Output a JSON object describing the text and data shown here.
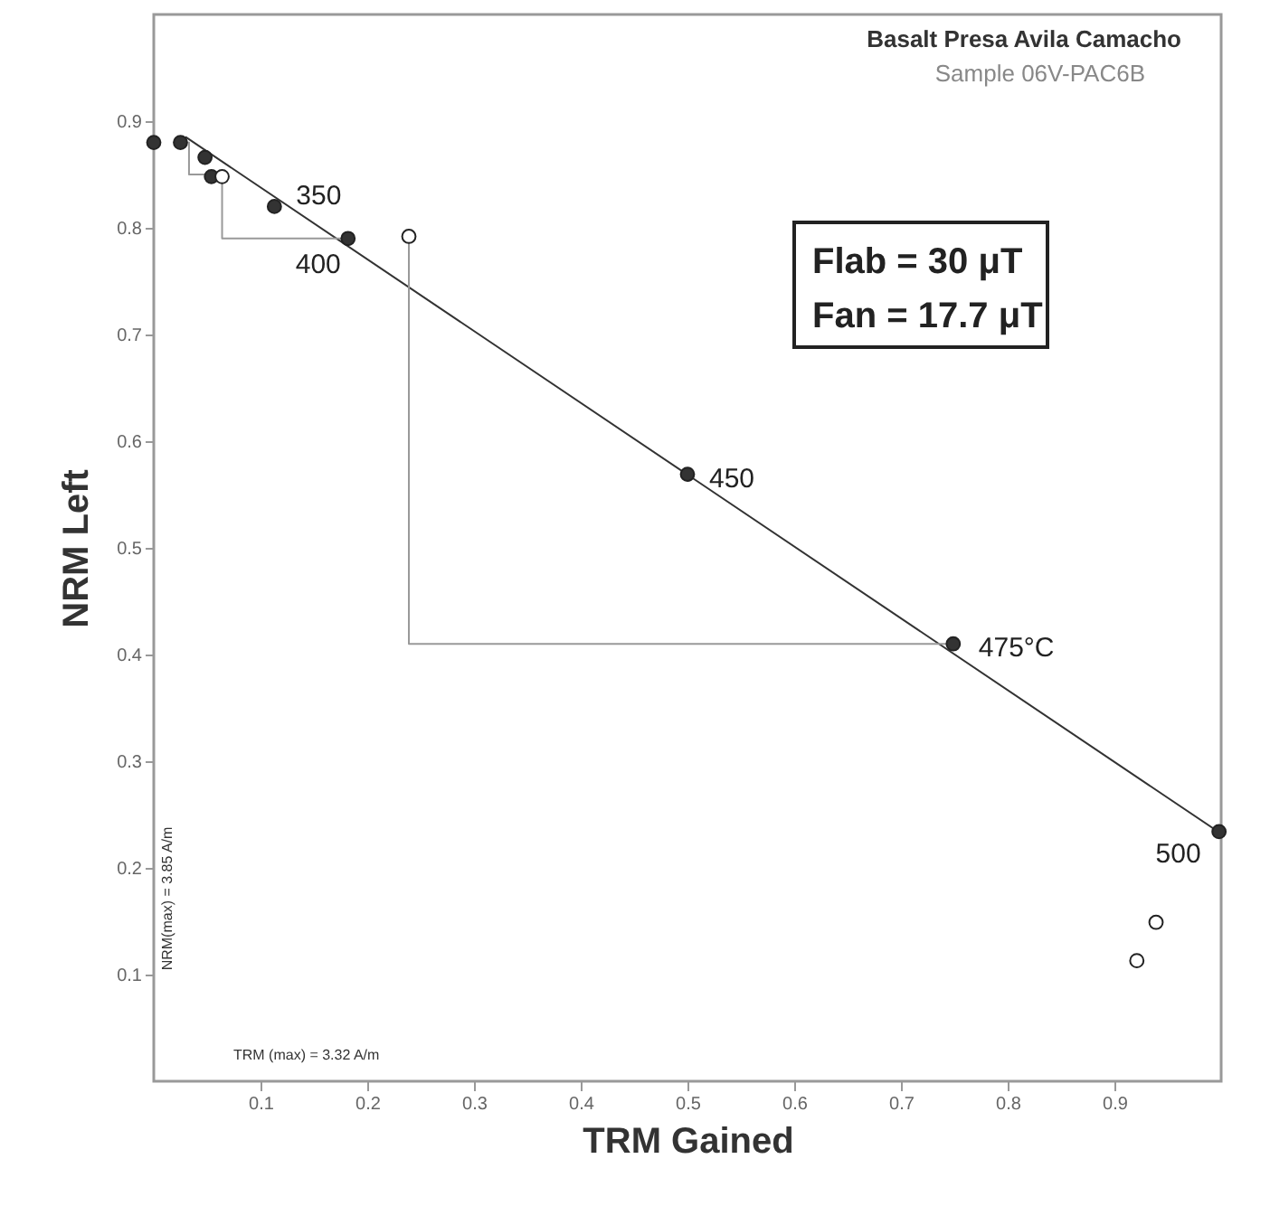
{
  "chart_data": {
    "type": "scatter",
    "title": "Basalt Presa Avila Camacho",
    "subtitle": "Sample 06V-PAC6B",
    "xlabel": "TRM Gained",
    "ylabel": "NRM Left",
    "xlim": [
      0,
      1
    ],
    "ylim": [
      0,
      1
    ],
    "xticks": [
      0.1,
      0.2,
      0.3,
      0.4,
      0.5,
      0.6,
      0.7,
      0.8,
      0.9
    ],
    "yticks": [
      0.1,
      0.2,
      0.3,
      0.4,
      0.5,
      0.6,
      0.7,
      0.8,
      0.9
    ],
    "series": [
      {
        "type": "line",
        "color": "#333333",
        "x": [
          0.03,
          1.0
        ],
        "values": [
          0.885,
          0.232
        ]
      },
      {
        "type": "line",
        "color": "#999999",
        "x": [
          0.033,
          0.033,
          0.05
        ],
        "values": [
          0.88,
          0.85,
          0.85
        ]
      },
      {
        "type": "line",
        "color": "#999999",
        "x": [
          0.064,
          0.064,
          0.182
        ],
        "values": [
          0.848,
          0.79,
          0.79
        ]
      },
      {
        "type": "line",
        "color": "#999999",
        "x": [
          0.239,
          0.239,
          0.749
        ],
        "values": [
          0.792,
          0.41,
          0.41
        ]
      },
      {
        "marker": "circle",
        "color": "#333333",
        "x": [
          0,
          0.025,
          0.048,
          0.054,
          0.113,
          0.182,
          0.5,
          0.749,
          0.998
        ],
        "values": [
          0.88,
          0.88,
          0.866,
          0.848,
          0.82,
          0.79,
          0.569,
          0.41,
          0.234
        ]
      },
      {
        "marker": "circle",
        "color": "#ffffff",
        "x": [
          0.064,
          0.239,
          0.939,
          0.921
        ],
        "values": [
          0.848,
          0.792,
          0.149,
          0.113
        ]
      }
    ],
    "annotations": [
      {
        "text": "350",
        "x": 0.113,
        "y": 0.82
      },
      {
        "text": "400",
        "x": 0.182,
        "y": 0.79
      },
      {
        "text": "450",
        "x": 0.5,
        "y": 0.569
      },
      {
        "text": "475°C",
        "x": 0.749,
        "y": 0.41
      },
      {
        "text": "500",
        "x": 0.998,
        "y": 0.234
      },
      "Flab = 30 μT",
      "Fan = 17.7 μT",
      "NRM(max) = 3.85 A/m",
      "TRM (max) = 3.32 A/m"
    ]
  }
}
